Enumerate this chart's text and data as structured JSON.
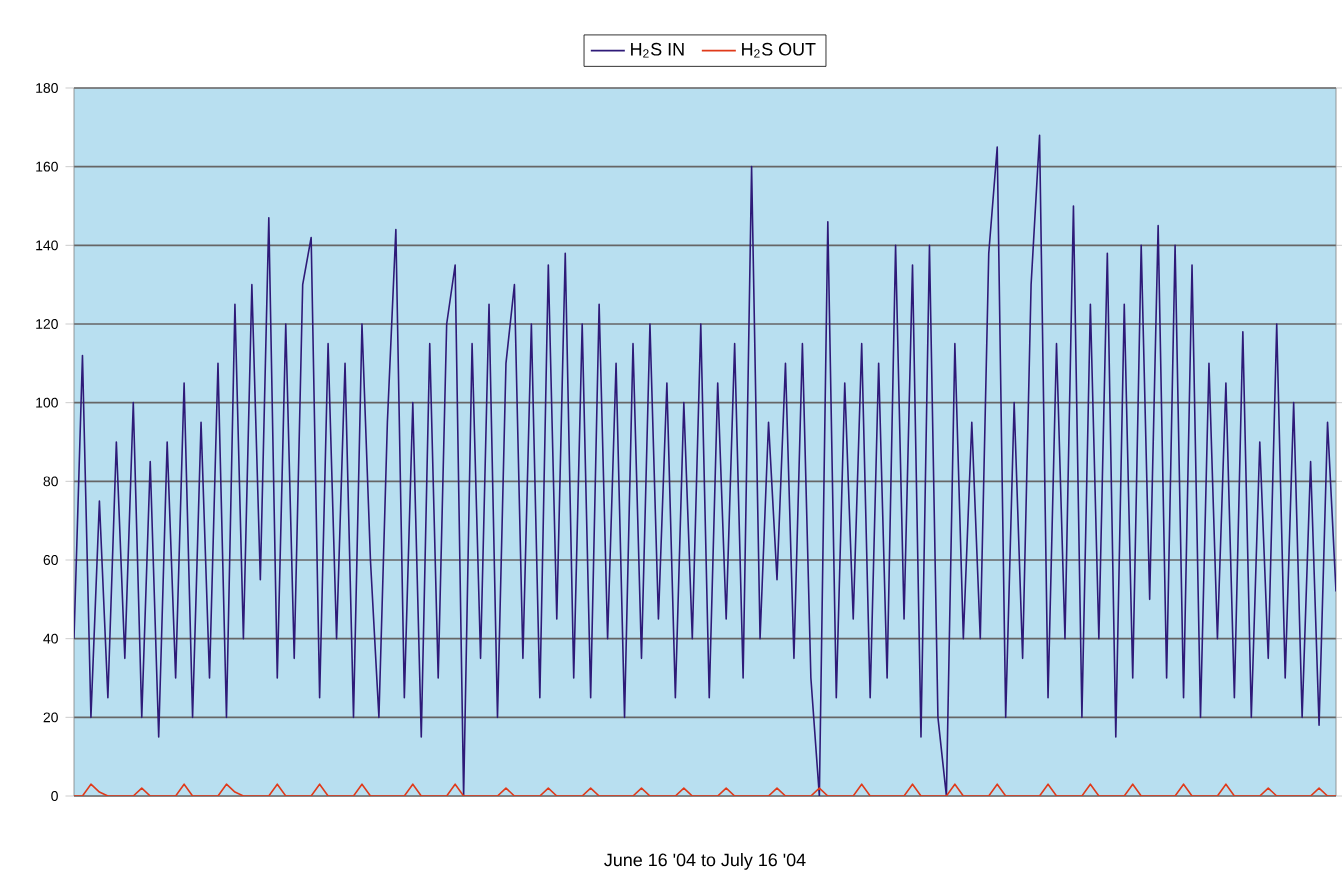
{
  "chart_data": {
    "type": "line",
    "xlabel": "June 16 '04 to July 16 '04",
    "categories": [
      null,
      null,
      null,
      null,
      null,
      null,
      null,
      null,
      null,
      null,
      null,
      null,
      null,
      null,
      null,
      null,
      null,
      null,
      null,
      null,
      null,
      null,
      null,
      null,
      null,
      null,
      null,
      null,
      null,
      null,
      null,
      null,
      null,
      null,
      null,
      null,
      null,
      null,
      null,
      null,
      null,
      null,
      null,
      null,
      null,
      null,
      null,
      null,
      null,
      null,
      null,
      null,
      null,
      null,
      null,
      null,
      null,
      null,
      null,
      null,
      null,
      null,
      null,
      null,
      null,
      null,
      null,
      null,
      null,
      null,
      null,
      null,
      null,
      null,
      null,
      null,
      null,
      null,
      null,
      null,
      null,
      null,
      null,
      null,
      null,
      null,
      null,
      null,
      null,
      null,
      null,
      null,
      null,
      null,
      null,
      null,
      null,
      null,
      null,
      null,
      null,
      null,
      null,
      null,
      null,
      null,
      null,
      null,
      null,
      null,
      null,
      null,
      null,
      null,
      null,
      null,
      null,
      null,
      null,
      null,
      null,
      null,
      null,
      null,
      null,
      null,
      null,
      null,
      null,
      null,
      null,
      null,
      null,
      null,
      null,
      null,
      null,
      null,
      null,
      null,
      null,
      null,
      null,
      null,
      null,
      null,
      null,
      null,
      null,
      null
    ],
    "series": [
      {
        "name": "H$_{2}$S IN",
        "color": "#2e1a78",
        "values": [
          40,
          112,
          20,
          75,
          25,
          90,
          35,
          100,
          20,
          85,
          15,
          90,
          30,
          105,
          20,
          95,
          30,
          110,
          20,
          125,
          40,
          130,
          55,
          147,
          30,
          120,
          35,
          130,
          142,
          25,
          115,
          40,
          110,
          20,
          120,
          60,
          20,
          95,
          144,
          25,
          100,
          15,
          115,
          30,
          120,
          135,
          0,
          115,
          35,
          125,
          20,
          110,
          130,
          35,
          120,
          25,
          135,
          45,
          138,
          30,
          120,
          25,
          125,
          40,
          110,
          20,
          115,
          35,
          120,
          45,
          105,
          25,
          100,
          40,
          120,
          25,
          105,
          45,
          115,
          30,
          160,
          40,
          95,
          55,
          110,
          35,
          115,
          30,
          0,
          146,
          25,
          105,
          45,
          115,
          25,
          110,
          30,
          140,
          45,
          135,
          15,
          140,
          20,
          0,
          115,
          40,
          95,
          40,
          138,
          165,
          20,
          100,
          35,
          130,
          168,
          25,
          115,
          40,
          150,
          20,
          125,
          40,
          138,
          15,
          125,
          30,
          140,
          50,
          145,
          30,
          140,
          25,
          135,
          20,
          110,
          40,
          105,
          25,
          118,
          20,
          90,
          35,
          120,
          30,
          100,
          20,
          85,
          18,
          95,
          52
        ]
      },
      {
        "name": "H$_{2}$S OUT",
        "color": "#e03a1a",
        "values": [
          0,
          0,
          3,
          1,
          0,
          0,
          0,
          0,
          2,
          0,
          0,
          0,
          0,
          3,
          0,
          0,
          0,
          0,
          3,
          1,
          0,
          0,
          0,
          0,
          3,
          0,
          0,
          0,
          0,
          3,
          0,
          0,
          0,
          0,
          3,
          0,
          0,
          0,
          0,
          0,
          3,
          0,
          0,
          0,
          0,
          3,
          0,
          0,
          0,
          0,
          0,
          2,
          0,
          0,
          0,
          0,
          2,
          0,
          0,
          0,
          0,
          2,
          0,
          0,
          0,
          0,
          0,
          2,
          0,
          0,
          0,
          0,
          2,
          0,
          0,
          0,
          0,
          2,
          0,
          0,
          0,
          0,
          0,
          2,
          0,
          0,
          0,
          0,
          2,
          0,
          0,
          0,
          0,
          3,
          0,
          0,
          0,
          0,
          0,
          3,
          0,
          0,
          0,
          0,
          3,
          0,
          0,
          0,
          0,
          3,
          0,
          0,
          0,
          0,
          0,
          3,
          0,
          0,
          0,
          0,
          3,
          0,
          0,
          0,
          0,
          3,
          0,
          0,
          0,
          0,
          0,
          3,
          0,
          0,
          0,
          0,
          3,
          0,
          0,
          0,
          0,
          2,
          0,
          0,
          0,
          0,
          0,
          2,
          0,
          0
        ]
      }
    ],
    "ylim": [
      0,
      180
    ],
    "yticks": [
      0,
      20,
      40,
      60,
      80,
      100,
      120,
      140,
      160,
      180
    ],
    "grid": "y",
    "legend": "top"
  }
}
